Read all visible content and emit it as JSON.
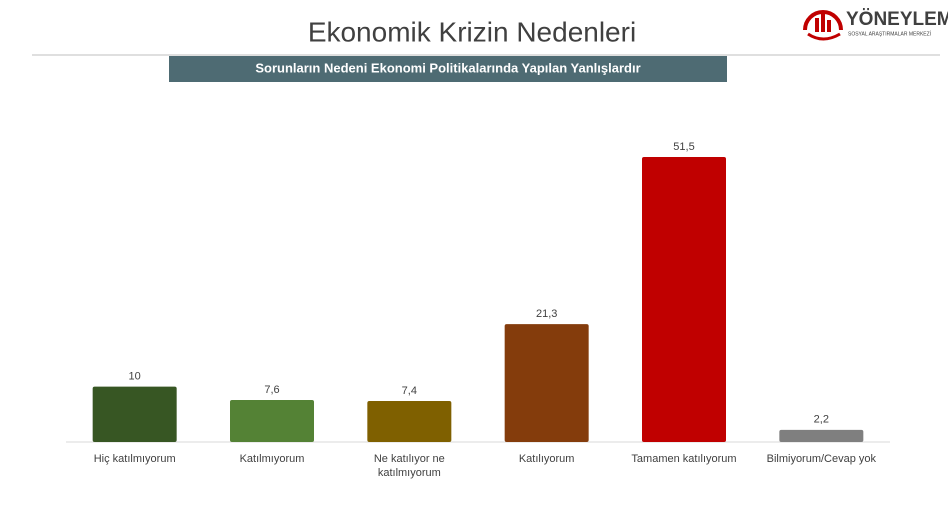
{
  "header": {
    "title": "Ekonomik Krizin Nedenleri",
    "subtitle": "Sorunların Nedeni Ekonomi Politikalarında Yapılan Yanlışlardır"
  },
  "logo": {
    "name": "YÖNEYLEM",
    "tagline": "SOSYAL ARAŞTIRMALAR MERKEZİ"
  },
  "chart_data": {
    "type": "bar",
    "categories": [
      "Hiç katılmıyorum",
      "Katılmıyorum",
      "Ne katılıyor ne katılmıyorum",
      "Katılıyorum",
      "Tamamen katılıyorum",
      "Bilmiyorum/Cevap yok"
    ],
    "values": [
      10,
      7.6,
      7.4,
      21.3,
      51.5,
      2.2
    ],
    "value_labels": [
      "10",
      "7,6",
      "7,4",
      "21,3",
      "51,5",
      "2,2"
    ],
    "colors": [
      "#375623",
      "#548235",
      "#7f6000",
      "#843c0c",
      "#c00000",
      "#7f7f7f"
    ]
  }
}
